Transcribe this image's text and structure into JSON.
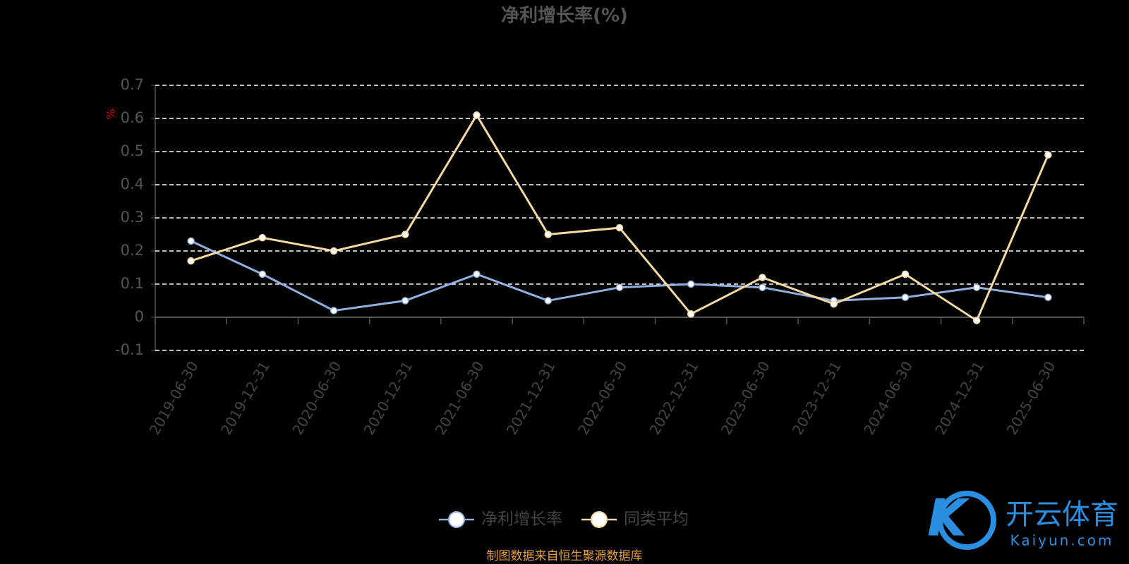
{
  "chart_data": {
    "type": "line",
    "title": "净利增长率(%)",
    "y_label": "%",
    "categories": [
      "2019-06-30",
      "2019-12-31",
      "2020-06-30",
      "2020-12-31",
      "2021-06-30",
      "2021-12-31",
      "2022-06-30",
      "2022-12-31",
      "2023-06-30",
      "2023-12-31",
      "2024-06-30",
      "2024-12-31",
      "2025-06-30"
    ],
    "series": [
      {
        "name": "净利增长率",
        "color": "#8fb0e0",
        "values": [
          0.23,
          0.13,
          0.02,
          0.05,
          0.13,
          0.05,
          0.09,
          0.1,
          0.09,
          0.05,
          0.06,
          0.09,
          0.06
        ]
      },
      {
        "name": "同类平均",
        "color": "#f5d9a0",
        "values": [
          0.17,
          0.24,
          0.2,
          0.25,
          0.61,
          0.25,
          0.27,
          0.01,
          0.12,
          0.04,
          0.13,
          -0.01,
          0.49
        ]
      }
    ],
    "ylim": [
      -0.1,
      0.7
    ],
    "yticks": [
      -0.1,
      0,
      0.1,
      0.2,
      0.3,
      0.4,
      0.5,
      0.6,
      0.7
    ],
    "grid": true,
    "legend": "bottom",
    "source": "制图数据来自恒生聚源数据库",
    "watermark": {
      "brand": "开云体育",
      "site": "Kaiyun.com"
    }
  }
}
